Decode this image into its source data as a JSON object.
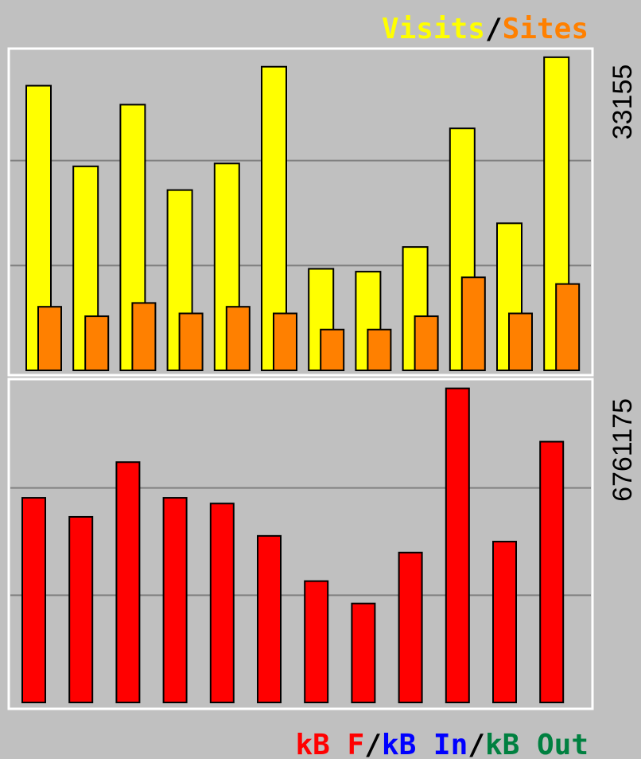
{
  "colors": {
    "background": "#c0c0c0",
    "frame": "#ffffff",
    "gridline": "#808080",
    "visits": "#ffff00",
    "sites": "#ff8000",
    "kb_f": "#ff0000",
    "kb_in": "#0000ff",
    "kb_out": "#008040",
    "bar_outline": "#000000"
  },
  "legend_top": {
    "visits": "Visits",
    "sep": "/",
    "sites": "Sites"
  },
  "legend_bottom": {
    "kb_f": "kB F",
    "sep1": "/",
    "kb_in": "kB In",
    "sep2": "/",
    "kb_out": "kB Out"
  },
  "chart_data": [
    {
      "type": "bar",
      "ylim": [
        0,
        33155
      ],
      "max_label": "33155",
      "grid": true,
      "series": [
        {
          "name": "Visits",
          "values": [
            30000,
            21500,
            28000,
            19000,
            21800,
            32000,
            10700,
            10400,
            13000,
            25500,
            15500,
            33000
          ]
        },
        {
          "name": "Sites",
          "values": [
            6700,
            5700,
            7100,
            6000,
            6700,
            6000,
            4300,
            4300,
            5700,
            9800,
            6000,
            9100
          ]
        }
      ]
    },
    {
      "type": "bar",
      "ylim": [
        0,
        6761175
      ],
      "max_label": "6761175",
      "grid": true,
      "series": [
        {
          "name": "kB F",
          "values": [
            4300000,
            3900000,
            5050000,
            4300000,
            4180000,
            3500000,
            2550000,
            2080000,
            3150000,
            6600000,
            3380000,
            5480000
          ]
        }
      ]
    }
  ]
}
